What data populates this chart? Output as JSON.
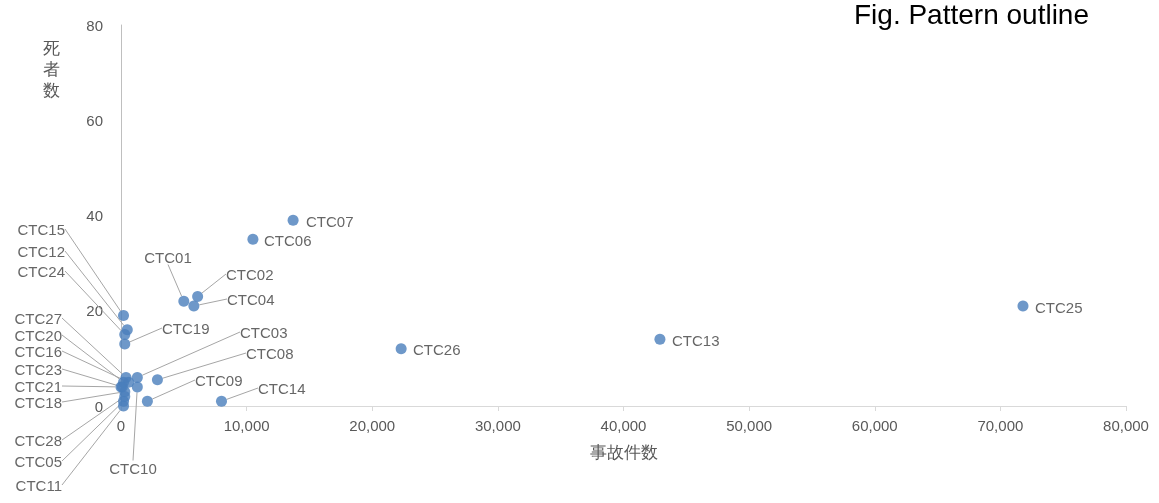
{
  "chart_data": {
    "type": "scatter",
    "title": "Fig. Pattern outline",
    "xlabel": "事故件数",
    "ylabel": "死者数",
    "xlim": [
      0,
      80000
    ],
    "xticks": [
      {
        "value": 0,
        "label": "0"
      },
      {
        "value": 10000,
        "label": "10,000"
      },
      {
        "value": 20000,
        "label": "20,000"
      },
      {
        "value": 30000,
        "label": "30,000"
      },
      {
        "value": 40000,
        "label": "40,000"
      },
      {
        "value": 50000,
        "label": "50,000"
      },
      {
        "value": 60000,
        "label": "60,000"
      },
      {
        "value": 70000,
        "label": "70,000"
      },
      {
        "value": 80000,
        "label": "80,000"
      }
    ],
    "ylim": [
      0,
      80
    ],
    "yticks": [
      0,
      20,
      40,
      60,
      80
    ],
    "grid": false,
    "marker": "circle",
    "series": [
      {
        "color": "#4a7ebb",
        "x": [
          5000,
          6100,
          1300,
          5800,
          200,
          10500,
          13700,
          2900,
          2100,
          1300,
          200,
          500,
          42900,
          8000,
          200,
          600,
          300,
          300,
          200,
          0,
          100,
          300,
          71800,
          22300,
          400,
          300
        ],
        "values": [
          22,
          23,
          6,
          21,
          1,
          35,
          39,
          5.5,
          1,
          4,
          0,
          16,
          14,
          1,
          19,
          5,
          3,
          13,
          5,
          4,
          4,
          15,
          21,
          12,
          6,
          2
        ],
        "value_labels": [
          "CTC01",
          "CTC02",
          "CTC03",
          "CTC04",
          "CTC05",
          "CTC06",
          "CTC07",
          "CTC08",
          "CTC09",
          "CTC10",
          "CTC11",
          "CTC12",
          "CTC13",
          "CTC14",
          "CTC15",
          "CTC16",
          "CTC18",
          "CTC19",
          "CTC20",
          "CTC21",
          "CTC23",
          "CTC24",
          "CTC25",
          "CTC26",
          "CTC27",
          "CTC28"
        ]
      }
    ]
  }
}
